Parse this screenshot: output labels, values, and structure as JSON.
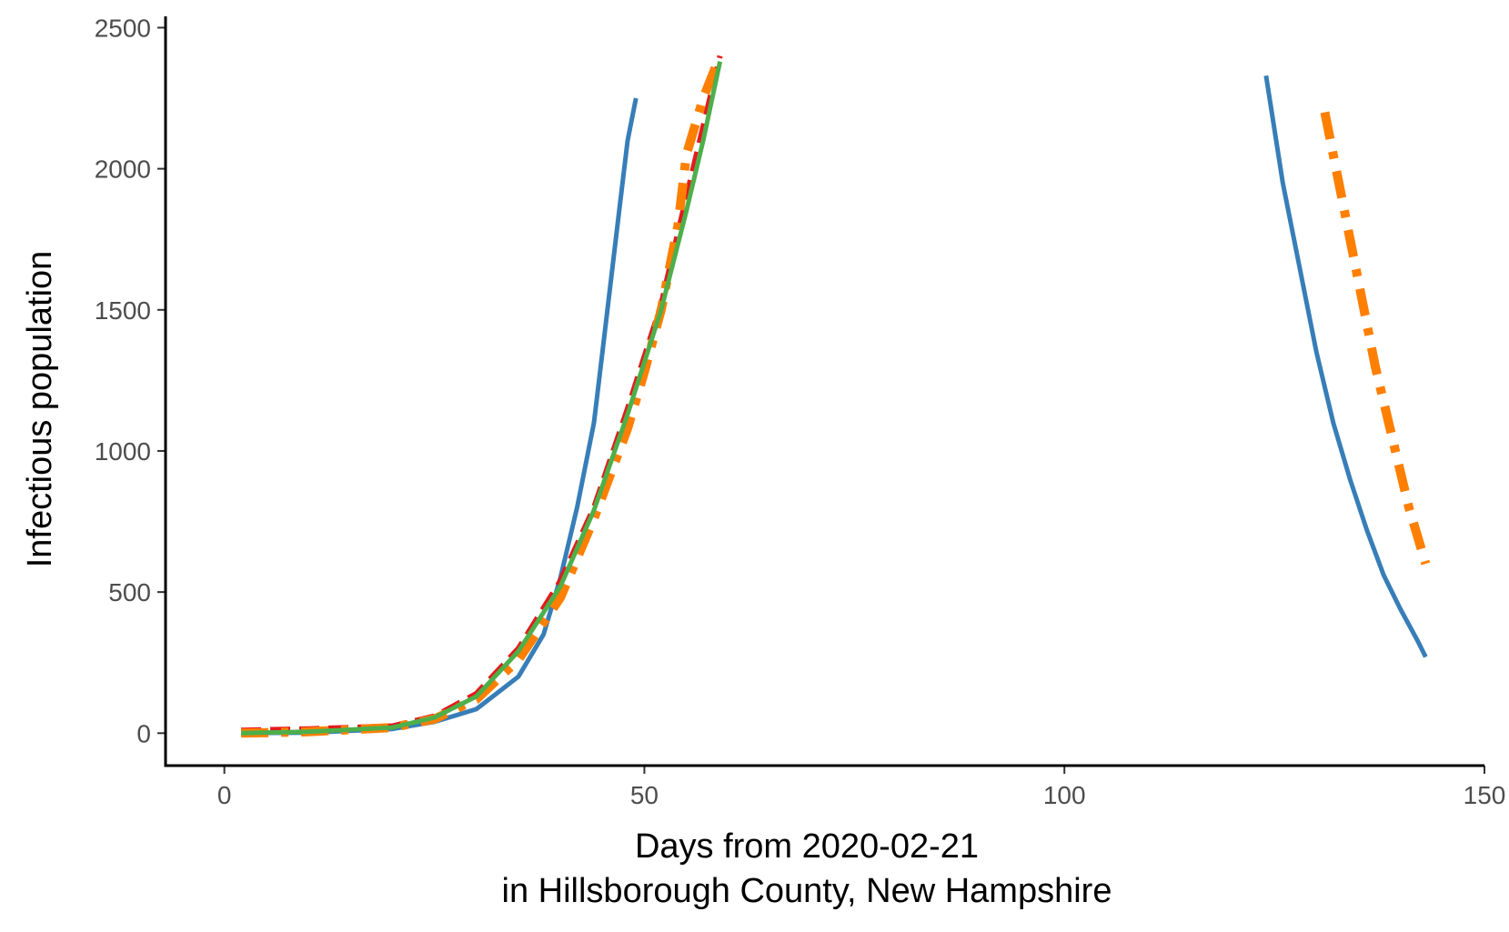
{
  "chart_data": {
    "type": "line",
    "xlabel": [
      "Days from 2020-02-21",
      "in Hillsborough County, New Hampshire"
    ],
    "ylabel": "Infectious population",
    "xlim": [
      -7,
      150
    ],
    "ylim": [
      -115,
      2540
    ],
    "xticks": [
      0,
      50,
      100,
      150
    ],
    "yticks": [
      0,
      500,
      1000,
      1500,
      2000,
      2500
    ],
    "grid": false,
    "legend": "none",
    "series": [
      {
        "color": "#377eb8",
        "style": "solid",
        "segments": [
          {
            "x": [
              2,
              10,
              20,
              25,
              30,
              35,
              38,
              40,
              42,
              44,
              45,
              46,
              47,
              48,
              49
            ],
            "y": [
              0,
              2,
              15,
              40,
              85,
              200,
              350,
              550,
              800,
              1100,
              1350,
              1600,
              1850,
              2100,
              2250
            ]
          },
          {
            "x": [
              124,
              126,
              128,
              130,
              132,
              134,
              136,
              138,
              140,
              142,
              143
            ],
            "y": [
              2330,
              1950,
              1650,
              1350,
              1100,
              900,
              720,
              560,
              440,
              330,
              270
            ]
          }
        ]
      },
      {
        "color": "#e41a1c",
        "style": "dashed",
        "segments": [
          {
            "x": [
              2,
              10,
              20,
              25,
              30,
              35,
              40,
              44,
              48,
              52,
              55,
              57,
              59
            ],
            "y": [
              10,
              15,
              25,
              60,
              140,
              300,
              540,
              800,
              1150,
              1520,
              1900,
              2150,
              2400
            ]
          }
        ]
      },
      {
        "color": "#ff7f00",
        "style": "dashdot",
        "segments": [
          {
            "x": [
              2,
              10,
              20,
              25,
              30,
              35,
              40,
              44,
              48,
              50,
              52,
              54,
              55,
              57,
              59
            ],
            "y": [
              0,
              5,
              20,
              50,
              120,
              260,
              480,
              760,
              1080,
              1280,
              1500,
              1800,
              2050,
              2250,
              2400
            ]
          },
          {
            "x": [
              131,
              133,
              135,
              137,
              139,
              141,
              143
            ],
            "y": [
              2200,
              1900,
              1600,
              1300,
              1050,
              800,
              600
            ]
          }
        ]
      },
      {
        "color": "#4daf4a",
        "style": "solid",
        "segments": [
          {
            "x": [
              2,
              10,
              20,
              25,
              30,
              35,
              40,
              44,
              48,
              52,
              55,
              57,
              59
            ],
            "y": [
              0,
              5,
              20,
              55,
              130,
              290,
              520,
              790,
              1130,
              1500,
              1850,
              2100,
              2380
            ]
          }
        ]
      }
    ]
  }
}
